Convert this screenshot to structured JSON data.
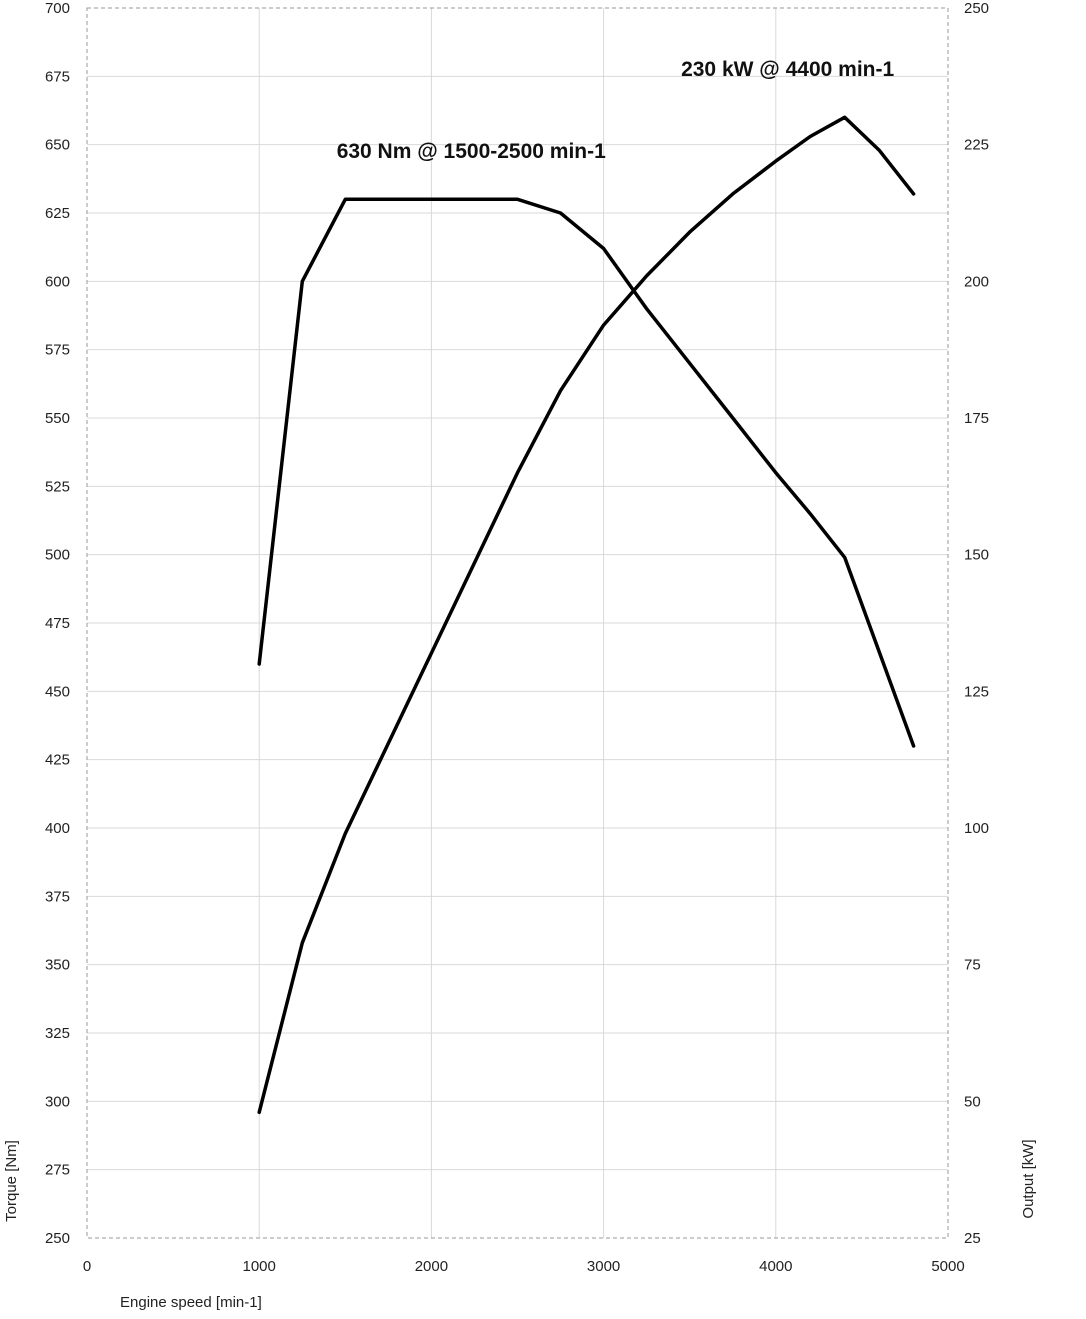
{
  "chart_data": {
    "type": "line",
    "title": "",
    "xlabel": "Engine speed [min-1]",
    "ylabel": "Torque [Nm]",
    "y2label": "Output [kW]",
    "xlim": [
      0,
      5000
    ],
    "ylim": [
      250,
      700
    ],
    "y2lim": [
      25,
      250
    ],
    "xticks": [
      "0",
      "1000",
      "2000",
      "3000",
      "4000",
      "5000"
    ],
    "yticks": [
      "250",
      "275",
      "300",
      "325",
      "350",
      "375",
      "400",
      "425",
      "450",
      "475",
      "500",
      "525",
      "550",
      "575",
      "600",
      "625",
      "650",
      "675",
      "700"
    ],
    "y2ticks": [
      "25",
      "50",
      "75",
      "100",
      "125",
      "150",
      "175",
      "200",
      "225",
      "250"
    ],
    "grid": true,
    "series": [
      {
        "axis": "left",
        "points": [
          [
            1000,
            460
          ],
          [
            1250,
            600
          ],
          [
            1500,
            630
          ],
          [
            2000,
            630
          ],
          [
            2500,
            630
          ],
          [
            2750,
            625
          ],
          [
            3000,
            612
          ],
          [
            3250,
            590
          ],
          [
            3500,
            570
          ],
          [
            3750,
            550
          ],
          [
            4000,
            530
          ],
          [
            4200,
            515
          ],
          [
            4400,
            499
          ],
          [
            4800,
            430
          ]
        ]
      },
      {
        "axis": "right",
        "points": [
          [
            1000,
            48
          ],
          [
            1250,
            79
          ],
          [
            1500,
            99
          ],
          [
            2000,
            132
          ],
          [
            2500,
            165
          ],
          [
            2750,
            180
          ],
          [
            3000,
            192
          ],
          [
            3250,
            201
          ],
          [
            3500,
            209
          ],
          [
            3750,
            216
          ],
          [
            4000,
            222
          ],
          [
            4200,
            226.5
          ],
          [
            4400,
            230
          ],
          [
            4600,
            224
          ],
          [
            4800,
            216
          ]
        ]
      }
    ],
    "annotations": [
      {
        "text": "630 Nm @ 1500-2500 min-1",
        "x": 1450,
        "y": 648
      },
      {
        "text": "230 kW @ 4400 min-1",
        "x": 3450,
        "y": 678
      }
    ]
  }
}
